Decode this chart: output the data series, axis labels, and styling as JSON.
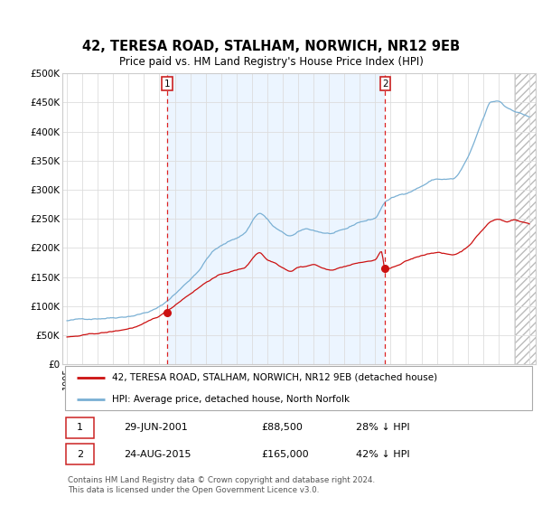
{
  "title": "42, TERESA ROAD, STALHAM, NORWICH, NR12 9EB",
  "subtitle": "Price paid vs. HM Land Registry's House Price Index (HPI)",
  "hpi_label": "HPI: Average price, detached house, North Norfolk",
  "property_label": "42, TERESA ROAD, STALHAM, NORWICH, NR12 9EB (detached house)",
  "hpi_color": "#7ab0d4",
  "property_color": "#cc1111",
  "bg_color": "#ddeeff",
  "sale1_date_num": 2001.49,
  "sale1_price": 88500,
  "sale1_label": "1",
  "sale1_text": "29-JUN-2001",
  "sale1_pct": "28% ↓ HPI",
  "sale2_date_num": 2015.65,
  "sale2_price": 165000,
  "sale2_label": "2",
  "sale2_text": "24-AUG-2015",
  "sale2_pct": "42% ↓ HPI",
  "ylim": [
    0,
    500000
  ],
  "xlim_start": 1994.7,
  "xlim_end": 2025.4,
  "footnote": "Contains HM Land Registry data © Crown copyright and database right 2024.\nThis data is licensed under the Open Government Licence v3.0.",
  "hatch_start": 2024.08,
  "ylabel_ticks": [
    0,
    50000,
    100000,
    150000,
    200000,
    250000,
    300000,
    350000,
    400000,
    450000,
    500000
  ],
  "ylabel_labels": [
    "£0",
    "£50K",
    "£100K",
    "£150K",
    "£200K",
    "£250K",
    "£300K",
    "£350K",
    "£400K",
    "£450K",
    "£500K"
  ]
}
